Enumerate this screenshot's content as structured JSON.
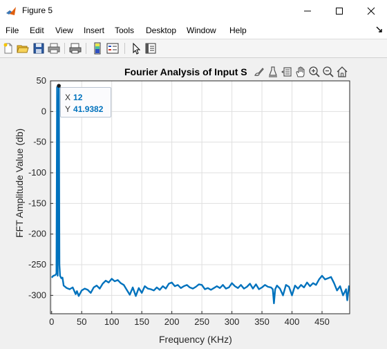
{
  "window": {
    "title": "Figure 5"
  },
  "menu": [
    "File",
    "Edit",
    "View",
    "Insert",
    "Tools",
    "Desktop",
    "Window",
    "Help"
  ],
  "toolbar_icons": [
    "new-figure-icon",
    "open-file-icon",
    "save-icon",
    "print-icon",
    "print-preview-icon",
    "insert-colorbar-icon",
    "insert-legend-icon",
    "edit-plot-icon",
    "property-inspector-icon"
  ],
  "axes_toolbar_icons": [
    "brush-icon",
    "data-tips-icon",
    "restore-view-icon",
    "pan-icon",
    "zoom-in-icon",
    "zoom-out-icon",
    "home-icon"
  ],
  "colors": {
    "line": "#0072bd",
    "axis": "#262626",
    "grid": "#dfdfdf"
  },
  "datatip": {
    "x_key": "X",
    "x_value": "12",
    "y_key": "Y",
    "y_value": "41.9382"
  },
  "chart_data": {
    "type": "line",
    "title": "Fourier Analysis of Input S",
    "xlabel": "Frequency (KHz)",
    "ylabel": "FFT Amplitude Value (db)",
    "xlim": [
      -2,
      496
    ],
    "ylim": [
      -330,
      50
    ],
    "xticks": [
      0,
      50,
      100,
      150,
      200,
      250,
      300,
      350,
      400,
      450
    ],
    "yticks": [
      50,
      0,
      -50,
      -100,
      -150,
      -200,
      -250,
      -300
    ],
    "grid": true,
    "series": [
      {
        "x": [
          0,
          3,
          6,
          8,
          9,
          10,
          12,
          13,
          14,
          16,
          18,
          20,
          25,
          30,
          35,
          40,
          42,
          45,
          50,
          55,
          60,
          65,
          70,
          75,
          80,
          85,
          90,
          95,
          100,
          105,
          110,
          115,
          120,
          125,
          130,
          135,
          140,
          145,
          150,
          155,
          160,
          165,
          170,
          175,
          180,
          185,
          190,
          195,
          200,
          205,
          210,
          215,
          220,
          225,
          230,
          235,
          240,
          245,
          250,
          255,
          260,
          265,
          270,
          275,
          280,
          285,
          290,
          295,
          300,
          305,
          310,
          315,
          320,
          325,
          330,
          335,
          340,
          345,
          350,
          355,
          360,
          365,
          368,
          370,
          372,
          375,
          380,
          385,
          390,
          395,
          400,
          405,
          410,
          415,
          420,
          425,
          430,
          435,
          440,
          445,
          450,
          455,
          460,
          465,
          470,
          475,
          480,
          485,
          490,
          492,
          495
        ],
        "y": [
          -271,
          -268,
          -267,
          -264,
          40,
          -268,
          41.9382,
          -250,
          -268,
          -272,
          -271,
          -284,
          -288,
          -290,
          -287,
          -298,
          -293,
          -301,
          -292,
          -289,
          -291,
          -296,
          -287,
          -284,
          -289,
          -281,
          -276,
          -279,
          -273,
          -277,
          -275,
          -280,
          -283,
          -291,
          -299,
          -287,
          -301,
          -288,
          -296,
          -285,
          -289,
          -290,
          -292,
          -287,
          -291,
          -285,
          -289,
          -281,
          -279,
          -285,
          -283,
          -288,
          -285,
          -283,
          -287,
          -289,
          -286,
          -282,
          -283,
          -290,
          -288,
          -291,
          -288,
          -285,
          -288,
          -283,
          -289,
          -287,
          -280,
          -285,
          -288,
          -283,
          -289,
          -286,
          -281,
          -289,
          -282,
          -290,
          -287,
          -283,
          -286,
          -287,
          -290,
          -313,
          -290,
          -284,
          -289,
          -300,
          -283,
          -286,
          -300,
          -284,
          -289,
          -283,
          -287,
          -279,
          -285,
          -280,
          -283,
          -274,
          -268,
          -274,
          -272,
          -270,
          -280,
          -292,
          -285,
          -300,
          -290,
          -308,
          -284
        ]
      }
    ]
  }
}
